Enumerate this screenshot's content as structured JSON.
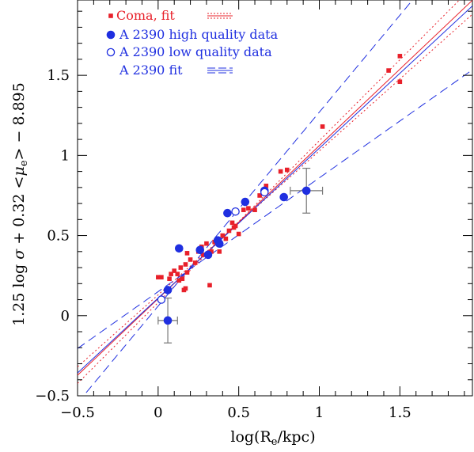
{
  "chart_data": {
    "type": "scatter",
    "xlabel": "log(R_e/kpc)",
    "ylabel": "1.25 log σ + 0.32 <μ_e> − 8.895",
    "xlim": [
      -0.5,
      1.95
    ],
    "ylim": [
      -0.5,
      1.97
    ],
    "x_ticks": [
      -0.5,
      0,
      0.5,
      1,
      1.5
    ],
    "x_tick_labels": [
      "−0.5",
      "0",
      "0.5",
      "1",
      "1.5"
    ],
    "y_ticks": [
      -0.5,
      0,
      0.5,
      1,
      1.5
    ],
    "y_tick_labels": [
      "−0.5",
      "0",
      "0.5",
      "1",
      "1.5"
    ],
    "grid": false,
    "legend_position": "top-left",
    "legend": [
      {
        "label": "Coma, fit",
        "marker": "square",
        "color": "#e8202a",
        "line": "dotted-dashed"
      },
      {
        "label": "A 2390 high quality data",
        "marker": "filled-circle",
        "color": "#1f2fe0",
        "line": ""
      },
      {
        "label": "A 2390 low quality data",
        "marker": "open-circle",
        "color": "#1f2fe0",
        "line": ""
      },
      {
        "label": "A 2390 fit",
        "marker": "",
        "color": "#1f2fe0",
        "line": "solid-dashed"
      }
    ],
    "series": [
      {
        "name": "Coma",
        "color": "#e8202a",
        "marker": "square",
        "points": [
          [
            0.0,
            0.24
          ],
          [
            0.02,
            0.24
          ],
          [
            0.07,
            0.23
          ],
          [
            0.08,
            0.26
          ],
          [
            0.1,
            0.28
          ],
          [
            0.12,
            0.26
          ],
          [
            0.13,
            0.22
          ],
          [
            0.14,
            0.3
          ],
          [
            0.15,
            0.23
          ],
          [
            0.16,
            0.16
          ],
          [
            0.17,
            0.17
          ],
          [
            0.17,
            0.32
          ],
          [
            0.18,
            0.27
          ],
          [
            0.18,
            0.39
          ],
          [
            0.2,
            0.35
          ],
          [
            0.23,
            0.33
          ],
          [
            0.25,
            0.4
          ],
          [
            0.27,
            0.43
          ],
          [
            0.28,
            0.38
          ],
          [
            0.3,
            0.45
          ],
          [
            0.32,
            0.19
          ],
          [
            0.33,
            0.4
          ],
          [
            0.35,
            0.46
          ],
          [
            0.38,
            0.4
          ],
          [
            0.4,
            0.5
          ],
          [
            0.42,
            0.48
          ],
          [
            0.44,
            0.53
          ],
          [
            0.46,
            0.58
          ],
          [
            0.47,
            0.55
          ],
          [
            0.48,
            0.56
          ],
          [
            0.5,
            0.51
          ],
          [
            0.53,
            0.66
          ],
          [
            0.56,
            0.67
          ],
          [
            0.6,
            0.66
          ],
          [
            0.63,
            0.75
          ],
          [
            0.67,
            0.81
          ],
          [
            0.76,
            0.9
          ],
          [
            0.8,
            0.91
          ],
          [
            1.02,
            1.18
          ],
          [
            1.43,
            1.53
          ],
          [
            1.5,
            1.62
          ],
          [
            1.5,
            1.46
          ]
        ]
      },
      {
        "name": "A 2390 high quality data",
        "color": "#1f2fe0",
        "marker": "filled-circle",
        "points": [
          [
            0.06,
            0.16
          ],
          [
            0.13,
            0.42
          ],
          [
            0.26,
            0.41
          ],
          [
            0.31,
            0.38
          ],
          [
            0.37,
            0.47
          ],
          [
            0.38,
            0.45
          ],
          [
            0.43,
            0.64
          ],
          [
            0.54,
            0.71
          ],
          [
            0.66,
            0.78
          ],
          [
            0.78,
            0.74
          ],
          [
            0.92,
            0.78
          ],
          [
            0.06,
            -0.03
          ]
        ],
        "error_bars": [
          {
            "x": 0.92,
            "y": 0.78,
            "xerr": 0.1,
            "yerr": 0.14
          },
          {
            "x": 0.06,
            "y": -0.03,
            "xerr": 0.06,
            "yerr": 0.14
          }
        ]
      },
      {
        "name": "A 2390 low quality data",
        "color": "#1f2fe0",
        "marker": "open-circle",
        "points": [
          [
            0.02,
            0.1
          ],
          [
            0.48,
            0.65
          ],
          [
            0.66,
            0.77
          ]
        ]
      }
    ],
    "fits": [
      {
        "name": "Coma fit",
        "color": "#e8202a",
        "style": "solid",
        "slope": 0.955,
        "intercept": 0.106
      },
      {
        "name": "Coma fit bound",
        "color": "#e8202a",
        "style": "dotted",
        "slope": 0.898,
        "intercept": 0.13
      },
      {
        "name": "Coma fit bound",
        "color": "#e8202a",
        "style": "dotted",
        "slope": 1.01,
        "intercept": 0.082
      },
      {
        "name": "A 2390 fit",
        "color": "#1f2fe0",
        "style": "solid",
        "slope": 0.935,
        "intercept": 0.11
      },
      {
        "name": "A 2390 fit bound",
        "color": "#1f2fe0",
        "style": "dashed",
        "slope": 0.71,
        "intercept": 0.15
      },
      {
        "name": "A 2390 fit bound",
        "color": "#1f2fe0",
        "style": "dashed",
        "slope": 1.21,
        "intercept": 0.06
      }
    ]
  }
}
